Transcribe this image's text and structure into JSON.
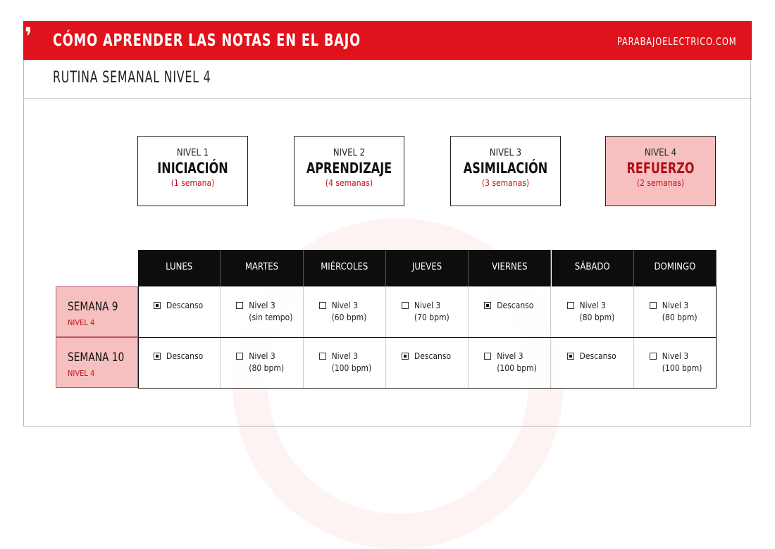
{
  "header": {
    "title": "CÓMO APRENDER LAS NOTAS EN EL BAJO",
    "site": "PARABAJOELECTRICO.COM",
    "accent": "#e0121b"
  },
  "subtitle": "RUTINA SEMANAL NIVEL 4",
  "levels": [
    {
      "num": "NIVEL 1",
      "name": "INICIACIÓN",
      "duration": "(1 semana)",
      "active": false
    },
    {
      "num": "NIVEL 2",
      "name": "APRENDIZAJE",
      "duration": "(4 semanas)",
      "active": false
    },
    {
      "num": "NIVEL 3",
      "name": "ASIMILACIÓN",
      "duration": "(3 semanas)",
      "active": false
    },
    {
      "num": "NIVEL 4",
      "name": "REFUERZO",
      "duration": "(2 semanas)",
      "active": true
    }
  ],
  "days": [
    "LUNES",
    "MARTES",
    "MIÉRCOLES",
    "JUEVES",
    "VIERNES",
    "SÁBADO",
    "DOMINGO"
  ],
  "weeks": [
    {
      "label": "SEMANA 9",
      "level": "NIVEL 4",
      "cells": [
        {
          "checked": true,
          "l1": "Descanso",
          "l2": ""
        },
        {
          "checked": false,
          "l1": "Nivel 3",
          "l2": "(sin tempo)"
        },
        {
          "checked": false,
          "l1": "Nivel 3",
          "l2": "(60 bpm)"
        },
        {
          "checked": false,
          "l1": "Nivel 3",
          "l2": "(70 bpm)"
        },
        {
          "checked": true,
          "l1": "Descanso",
          "l2": ""
        },
        {
          "checked": false,
          "l1": "Nivel 3",
          "l2": "(80 bpm)"
        },
        {
          "checked": false,
          "l1": "Nivel 3",
          "l2": "(80 bpm)"
        }
      ]
    },
    {
      "label": "SEMANA 10",
      "level": "NIVEL 4",
      "cells": [
        {
          "checked": true,
          "l1": "Descanso",
          "l2": ""
        },
        {
          "checked": false,
          "l1": "Nivel 3",
          "l2": "(80 bpm)"
        },
        {
          "checked": false,
          "l1": "Nivel 3",
          "l2": "(100 bpm)"
        },
        {
          "checked": true,
          "l1": "Descanso",
          "l2": ""
        },
        {
          "checked": false,
          "l1": "Nivel 3",
          "l2": "(100 bpm)"
        },
        {
          "checked": true,
          "l1": "Descanso",
          "l2": ""
        },
        {
          "checked": false,
          "l1": "Nivel 3",
          "l2": "(100 bpm)"
        }
      ]
    }
  ]
}
